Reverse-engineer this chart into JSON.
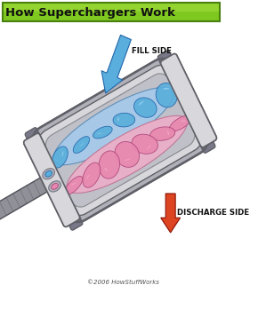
{
  "title": "How Superchargers Work",
  "title_bg_top": "#8fce3a",
  "title_bg_bot": "#5a9a10",
  "title_color": "#111111",
  "title_fontsize": 9.5,
  "fill_side_label": "FILL SIDE",
  "discharge_side_label": "DISCHARGE SIDE",
  "copyright": "©2006 HowStuffWorks",
  "bg_color": "#ffffff",
  "fill_arrow_color": "#5aaede",
  "discharge_arrow_color": "#dd4422",
  "blue_rotor": "#5aaedc",
  "blue_dark": "#2266aa",
  "blue_light": "#aaddf8",
  "pink_rotor": "#e888b0",
  "pink_dark": "#aa4477",
  "pink_light": "#f8c0d8",
  "casing_light": "#d8d8dc",
  "casing_mid": "#b0b0b8",
  "casing_dark": "#787888",
  "casing_edge": "#606068",
  "shaft_color": "#909098",
  "shaft_dark": "#505058",
  "label_fontsize": 6.2,
  "label_fontweight": "bold",
  "copyright_fontsize": 5.0
}
